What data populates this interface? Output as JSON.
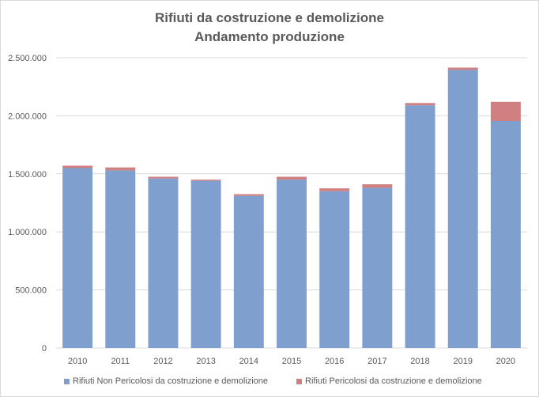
{
  "title_line1": "Rifiuti da costruzione e demolizione",
  "title_line2": "Andamento produzione",
  "colors": {
    "non_pericolosi": "#7f9fcf",
    "pericolosi": "#d08080",
    "grid": "#d9d9d9",
    "text": "#595959"
  },
  "chart_data": {
    "type": "bar",
    "stacked": true,
    "title": "Rifiuti da costruzione e demolizione\nAndamento produzione",
    "xlabel": "",
    "ylabel": "",
    "categories": [
      "2010",
      "2011",
      "2012",
      "2013",
      "2014",
      "2015",
      "2016",
      "2017",
      "2018",
      "2019",
      "2020"
    ],
    "y_ticks": [
      "0",
      "500.000",
      "1.000.000",
      "1.500.000",
      "2.000.000",
      "2.500.000"
    ],
    "y_tick_values": [
      0,
      500000,
      1000000,
      1500000,
      2000000,
      2500000
    ],
    "ylim": [
      0,
      2500000
    ],
    "grid": true,
    "legend_position": "bottom",
    "series": [
      {
        "name": "Rifiuti Non Pericolosi da costruzione e demolizione",
        "color": "#7f9fcf",
        "values": [
          1550000,
          1530000,
          1460000,
          1440000,
          1310000,
          1450000,
          1350000,
          1380000,
          2090000,
          2395000,
          1955000
        ]
      },
      {
        "name": "Rifiuti Pericolosi da costruzione e demolizione",
        "color": "#d08080",
        "values": [
          20000,
          25000,
          15000,
          10000,
          15000,
          25000,
          25000,
          30000,
          20000,
          20000,
          165000
        ]
      }
    ]
  }
}
